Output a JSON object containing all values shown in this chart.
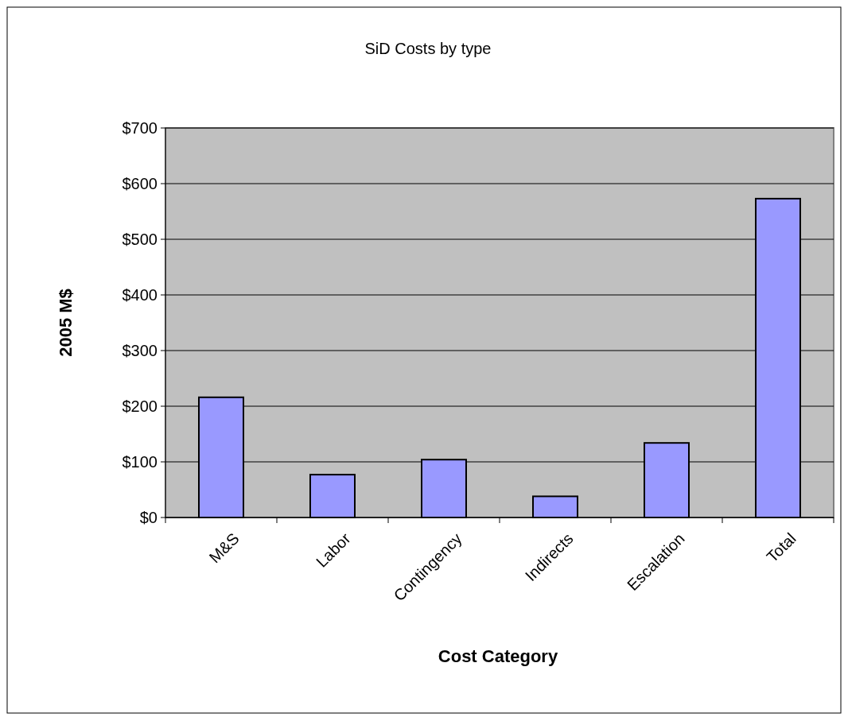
{
  "chart_data": {
    "type": "bar",
    "title": "SiD Costs by type",
    "xlabel": "Cost Category",
    "ylabel": "2005 M$",
    "categories": [
      "M&S",
      "Labor",
      "Contingency",
      "Indirects",
      "Escalation",
      "Total"
    ],
    "values": [
      216,
      77,
      104,
      38,
      134,
      573
    ],
    "color": "#9999ff",
    "ylim": [
      0,
      700
    ],
    "yticks": [
      {
        "value": 0,
        "label": "$0"
      },
      {
        "value": 100,
        "label": "$100"
      },
      {
        "value": 200,
        "label": "$200"
      },
      {
        "value": 300,
        "label": "$300"
      },
      {
        "value": 400,
        "label": "$400"
      },
      {
        "value": 500,
        "label": "$500"
      },
      {
        "value": 600,
        "label": "$600"
      },
      {
        "value": 700,
        "label": "$700"
      }
    ],
    "grid": "y"
  }
}
